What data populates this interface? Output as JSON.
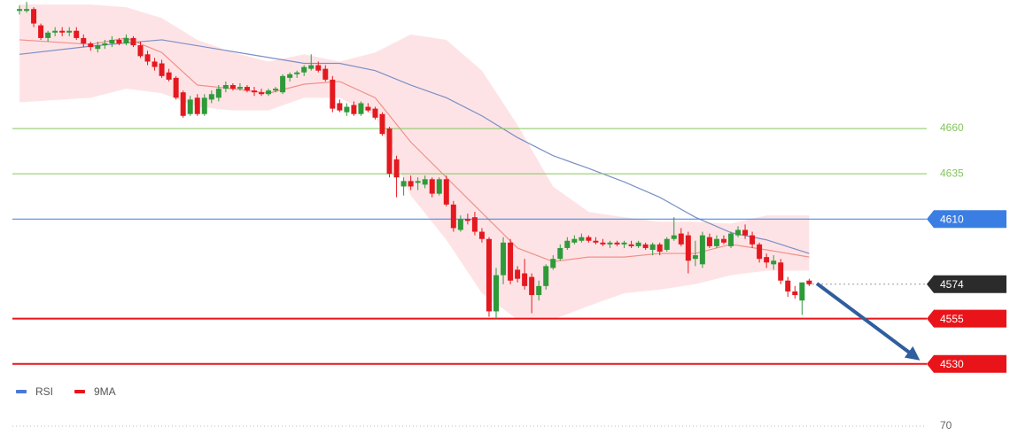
{
  "chart_data": [
    {
      "type": "candlestick",
      "ylim": [
        4523,
        4731
      ],
      "up_color": "#2f9a3a",
      "down_color": "#e3191f",
      "candles": [
        [
          4725,
          4728,
          4723,
          4726
        ],
        [
          4725,
          4730,
          4724,
          4726
        ],
        [
          4726,
          4727,
          4716,
          4718
        ],
        [
          4717,
          4718,
          4709,
          4710
        ],
        [
          4710,
          4714,
          4708,
          4713
        ],
        [
          4713,
          4716,
          4711,
          4714
        ],
        [
          4714,
          4716,
          4711,
          4713
        ],
        [
          4713,
          4716,
          4711,
          4714
        ],
        [
          4714,
          4716,
          4709,
          4710
        ],
        [
          4710,
          4712,
          4705,
          4707
        ],
        [
          4707,
          4708,
          4703,
          4705
        ],
        [
          4704,
          4708,
          4702,
          4706
        ],
        [
          4706,
          4709,
          4704,
          4707
        ],
        [
          4707,
          4711,
          4705,
          4709
        ],
        [
          4709,
          4710,
          4706,
          4707
        ],
        [
          4707,
          4712,
          4706,
          4710
        ],
        [
          4710,
          4711,
          4705,
          4706
        ],
        [
          4706,
          4708,
          4699,
          4700
        ],
        [
          4701,
          4703,
          4695,
          4697
        ],
        [
          4697,
          4699,
          4692,
          4694
        ],
        [
          4696,
          4698,
          4688,
          4689
        ],
        [
          4691,
          4693,
          4686,
          4687
        ],
        [
          4688,
          4689,
          4676,
          4677
        ],
        [
          4680,
          4681,
          4666,
          4667
        ],
        [
          4668,
          4678,
          4667,
          4676
        ],
        [
          4677,
          4679,
          4667,
          4668
        ],
        [
          4668,
          4679,
          4667,
          4677
        ],
        [
          4676,
          4681,
          4674,
          4679
        ],
        [
          4677,
          4684,
          4675,
          4682
        ],
        [
          4682,
          4686,
          4680,
          4684
        ],
        [
          4684,
          4685,
          4681,
          4682
        ],
        [
          4682,
          4685,
          4681,
          4683
        ],
        [
          4683,
          4684,
          4680,
          4681
        ],
        [
          4681,
          4683,
          4678,
          4680
        ],
        [
          4680,
          4682,
          4678,
          4679
        ],
        [
          4679,
          4682,
          4678,
          4681
        ],
        [
          4681,
          4683,
          4680,
          4682
        ],
        [
          4680,
          4690,
          4679,
          4689
        ],
        [
          4688,
          4691,
          4686,
          4690
        ],
        [
          4690,
          4692,
          4688,
          4691
        ],
        [
          4691,
          4695,
          4689,
          4694
        ],
        [
          4693,
          4701,
          4692,
          4695
        ],
        [
          4695,
          4697,
          4691,
          4692
        ],
        [
          4693,
          4695,
          4686,
          4687
        ],
        [
          4687,
          4689,
          4669,
          4671
        ],
        [
          4674,
          4676,
          4669,
          4670
        ],
        [
          4669,
          4674,
          4667,
          4672
        ],
        [
          4673,
          4675,
          4667,
          4668
        ],
        [
          4668,
          4675,
          4667,
          4674
        ],
        [
          4672,
          4674,
          4669,
          4670
        ],
        [
          4671,
          4672,
          4665,
          4666
        ],
        [
          4668,
          4669,
          4656,
          4657
        ],
        [
          4660,
          4661,
          4633,
          4635
        ],
        [
          4643,
          4645,
          4622,
          4633
        ],
        [
          4628,
          4633,
          4623,
          4631
        ],
        [
          4631,
          4634,
          4626,
          4628
        ],
        [
          4630,
          4633,
          4626,
          4631
        ],
        [
          4629,
          4634,
          4627,
          4632
        ],
        [
          4632,
          4633,
          4622,
          4624
        ],
        [
          4624,
          4633,
          4623,
          4632
        ],
        [
          4632,
          4634,
          4617,
          4618
        ],
        [
          4618,
          4620,
          4603,
          4605
        ],
        [
          4604,
          4612,
          4603,
          4610
        ],
        [
          4610,
          4613,
          4607,
          4609
        ],
        [
          4611,
          4614,
          4601,
          4603
        ],
        [
          4603,
          4605,
          4597,
          4599
        ],
        [
          4599,
          4600,
          4556,
          4559
        ],
        [
          4559,
          4583,
          4555,
          4579
        ],
        [
          4579,
          4600,
          4574,
          4597
        ],
        [
          4597,
          4599,
          4574,
          4576
        ],
        [
          4582,
          4584,
          4575,
          4577
        ],
        [
          4580,
          4588,
          4571,
          4573
        ],
        [
          4578,
          4580,
          4558,
          4568
        ],
        [
          4568,
          4576,
          4565,
          4573
        ],
        [
          4573,
          4585,
          4571,
          4584
        ],
        [
          4583,
          4590,
          4582,
          4588
        ],
        [
          4588,
          4596,
          4587,
          4594
        ],
        [
          4594,
          4600,
          4593,
          4598
        ],
        [
          4597,
          4601,
          4596,
          4599
        ],
        [
          4598,
          4602,
          4597,
          4600
        ],
        [
          4600,
          4601,
          4597,
          4598
        ],
        [
          4598,
          4600,
          4596,
          4597
        ],
        [
          4597,
          4599,
          4595,
          4596
        ],
        [
          4596,
          4598,
          4594,
          4597
        ],
        [
          4597,
          4598,
          4595,
          4596
        ],
        [
          4596,
          4598,
          4594,
          4597
        ],
        [
          4596,
          4598,
          4594,
          4595
        ],
        [
          4595,
          4598,
          4594,
          4597
        ],
        [
          4596,
          4597,
          4593,
          4594
        ],
        [
          4593,
          4597,
          4590,
          4596
        ],
        [
          4596,
          4597,
          4590,
          4592
        ],
        [
          4593,
          4600,
          4592,
          4599
        ],
        [
          4599,
          4611,
          4598,
          4601
        ],
        [
          4602,
          4605,
          4595,
          4596
        ],
        [
          4601,
          4603,
          4580,
          4587
        ],
        [
          4588,
          4598,
          4584,
          4590
        ],
        [
          4585,
          4603,
          4583,
          4601
        ],
        [
          4600,
          4602,
          4594,
          4595
        ],
        [
          4595,
          4601,
          4594,
          4599
        ],
        [
          4599,
          4601,
          4596,
          4597
        ],
        [
          4595,
          4603,
          4594,
          4602
        ],
        [
          4601,
          4606,
          4600,
          4604
        ],
        [
          4604,
          4607,
          4599,
          4601
        ],
        [
          4601,
          4603,
          4594,
          4596
        ],
        [
          4596,
          4597,
          4586,
          4588
        ],
        [
          4589,
          4591,
          4583,
          4586
        ],
        [
          4585,
          4590,
          4582,
          4587
        ],
        [
          4586,
          4588,
          4574,
          4576
        ],
        [
          4576,
          4578,
          4567,
          4570
        ],
        [
          4570,
          4573,
          4566,
          4568
        ],
        [
          4565,
          4575,
          4557,
          4575
        ],
        [
          4576,
          4577,
          4573,
          4574
        ]
      ],
      "band": {
        "color": "#fdd9dd",
        "x": [
          0,
          10,
          15,
          20,
          25,
          30,
          35,
          40,
          45,
          50,
          55,
          60,
          65,
          70,
          75,
          80,
          85,
          90,
          95,
          100,
          105,
          111
        ],
        "upper": [
          4728.5,
          4728.5,
          4727,
          4721,
          4709,
          4702,
          4697,
          4701,
          4697,
          4702,
          4712,
          4709,
          4692,
          4662,
          4628,
          4614,
          4611,
          4608.5,
          4608.5,
          4607.5,
          4612,
          4612
        ],
        "lower": [
          4674.5,
          4677,
          4682,
          4679.5,
          4672,
          4670,
          4670,
          4677,
          4677,
          4667,
          4623,
          4598.5,
          4569,
          4554.5,
          4554.5,
          4562,
          4569,
          4571,
          4574,
          4579,
          4581.5,
          4581.5
        ]
      },
      "overlays": [
        {
          "color": "#7b8fc6",
          "x": [
            0,
            10,
            20,
            30,
            40,
            45,
            50,
            55,
            60,
            65,
            70,
            75,
            80,
            85,
            90,
            95,
            100,
            105,
            111
          ],
          "values": [
            4701,
            4705.5,
            4709,
            4702.5,
            4696,
            4696,
            4692,
            4684,
            4677,
            4667,
            4655,
            4645,
            4638,
            4630.5,
            4622,
            4611,
            4602.5,
            4598.5,
            4591
          ]
        },
        {
          "color": "#f09088",
          "x": [
            0,
            10,
            15,
            20,
            25,
            30,
            35,
            40,
            45,
            50,
            55,
            60,
            65,
            70,
            75,
            80,
            85,
            90,
            95,
            100,
            105,
            111
          ],
          "values": [
            4709,
            4706.5,
            4710,
            4702,
            4684,
            4682,
            4679.5,
            4684.5,
            4686,
            4677,
            4652.5,
            4633,
            4613.5,
            4594,
            4586.5,
            4589,
            4589,
            4591,
            4591,
            4596,
            4593,
            4589
          ]
        }
      ],
      "levels": [
        {
          "value": 4660,
          "color": "#86c55e",
          "tag": false
        },
        {
          "value": 4635,
          "color": "#86c55e",
          "tag": false
        },
        {
          "value": 4610,
          "color": "#3b7ee3",
          "tag": true
        },
        {
          "value": 4574,
          "color": "#2b2b2b",
          "tag": true,
          "dotted": true
        },
        {
          "value": 4555,
          "color": "#e8141a",
          "tag": true
        },
        {
          "value": 4530,
          "color": "#e8141a",
          "tag": true
        }
      ]
    },
    {
      "type": "line",
      "ylim": [
        0,
        100
      ],
      "yticks": [
        70
      ],
      "grid": true,
      "series": [
        {
          "name": "RSI",
          "color": "#4a78d6"
        },
        {
          "name": "9MA",
          "color": "#e8141a"
        }
      ]
    }
  ]
}
